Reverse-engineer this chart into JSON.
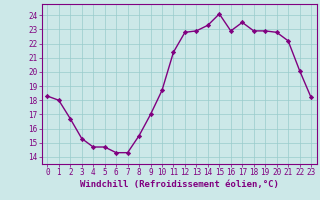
{
  "x": [
    0,
    1,
    2,
    3,
    4,
    5,
    6,
    7,
    8,
    9,
    10,
    11,
    12,
    13,
    14,
    15,
    16,
    17,
    18,
    19,
    20,
    21,
    22,
    23
  ],
  "y": [
    18.3,
    18.0,
    16.7,
    15.3,
    14.7,
    14.7,
    14.3,
    14.3,
    15.5,
    17.0,
    18.7,
    21.4,
    22.8,
    22.9,
    23.3,
    24.1,
    22.9,
    23.5,
    22.9,
    22.9,
    22.8,
    22.2,
    20.1,
    18.2
  ],
  "line_color": "#800080",
  "marker": "D",
  "marker_size": 2.2,
  "bg_color": "#cce8e8",
  "grid_color": "#99cccc",
  "xlabel": "Windchill (Refroidissement éolien,°C)",
  "ylim": [
    13.5,
    24.8
  ],
  "yticks": [
    14,
    15,
    16,
    17,
    18,
    19,
    20,
    21,
    22,
    23,
    24
  ],
  "xticks": [
    0,
    1,
    2,
    3,
    4,
    5,
    6,
    7,
    8,
    9,
    10,
    11,
    12,
    13,
    14,
    15,
    16,
    17,
    18,
    19,
    20,
    21,
    22,
    23
  ],
  "tick_color": "#800080",
  "tick_fontsize": 5.5,
  "xlabel_fontsize": 6.5,
  "line_width": 1.0,
  "xlim": [
    -0.5,
    23.5
  ],
  "spine_color": "#800080"
}
